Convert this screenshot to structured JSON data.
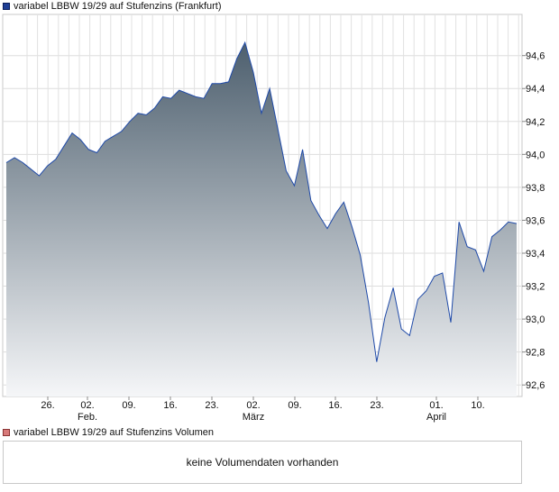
{
  "legend": {
    "price_label": "variabel LBBW 19/29 auf Stufenzins (Frankfurt)",
    "volume_label": "variabel LBBW 19/29 auf Stufenzins Volumen",
    "price_color": "#1f3f95",
    "volume_color": "#d87a7a"
  },
  "volume": {
    "message": "keine Volumendaten vorhanden"
  },
  "chart_data": {
    "type": "area",
    "title": "variabel LBBW 19/29 auf Stufenzins (Frankfurt)",
    "xlabel": "",
    "ylabel": "",
    "ylim": [
      92.53,
      94.85
    ],
    "yticks": [
      "94,6",
      "94,4",
      "94,2",
      "94,0",
      "93,8",
      "93,6",
      "93,4",
      "93,2",
      "93,0",
      "92,8",
      "92,6"
    ],
    "ytick_values": [
      94.6,
      94.4,
      94.2,
      94.0,
      93.8,
      93.6,
      93.4,
      93.2,
      93.0,
      92.8,
      92.6
    ],
    "xticks": [
      "26.",
      "02.",
      "09.",
      "16.",
      "23.",
      "02.",
      "09.",
      "16.",
      "23.",
      "01.",
      "10."
    ],
    "month_labels": [
      "Feb.",
      "März",
      "April"
    ],
    "grid": true,
    "line_color": "#1f4aa8",
    "fill_top_color": "#4d5f6e",
    "fill_bottom_color": "#f5f6f8",
    "series": [
      {
        "values": [
          93.95,
          93.98,
          93.95,
          93.91,
          93.87,
          93.93,
          93.97,
          94.05,
          94.13,
          94.09,
          94.03,
          94.01,
          94.08,
          94.11,
          94.14,
          94.2,
          94.25,
          94.24,
          94.28,
          94.35,
          94.34,
          94.39,
          94.37,
          94.35,
          94.34,
          94.43,
          94.43,
          94.44,
          94.58,
          94.68,
          94.5,
          94.25,
          94.4,
          94.15,
          93.9,
          93.81,
          94.03,
          93.72,
          93.63,
          93.55,
          93.64,
          93.71,
          93.56,
          93.39,
          93.1,
          92.74,
          93.01,
          93.19,
          92.94,
          92.9,
          93.12,
          93.17,
          93.26,
          93.28,
          92.98,
          93.59,
          93.44,
          93.42,
          93.29,
          93.5,
          93.54,
          93.59,
          93.58
        ]
      }
    ]
  }
}
